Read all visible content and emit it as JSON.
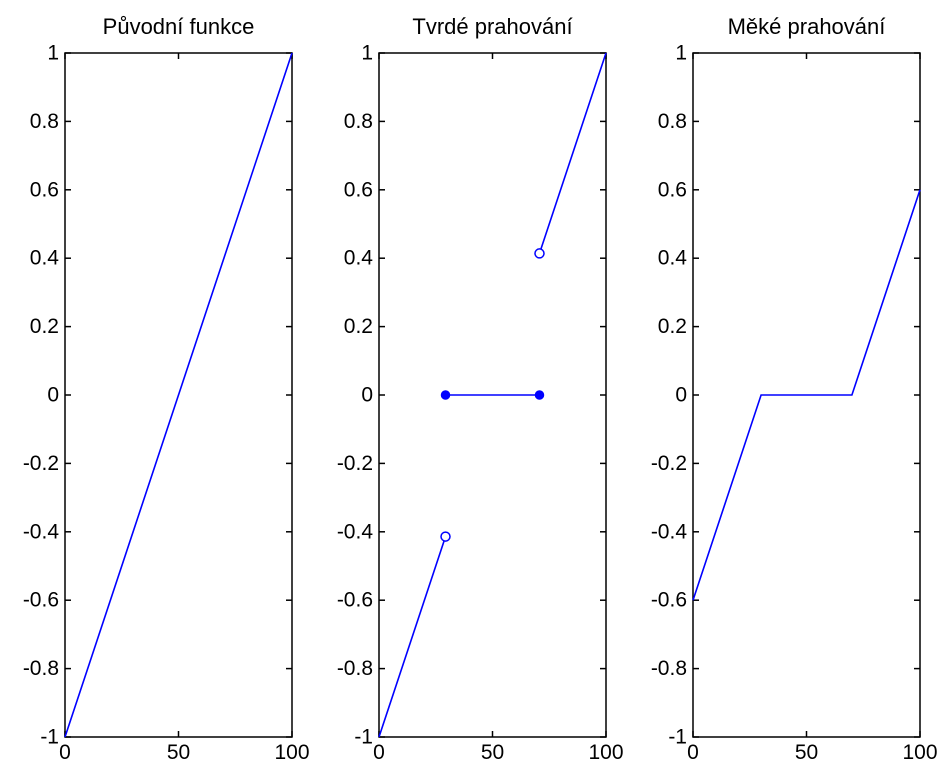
{
  "chart_data": [
    {
      "type": "line",
      "title": "Původní funkce",
      "xlabel": "",
      "ylabel": "",
      "xlim": [
        0,
        100
      ],
      "ylim": [
        -1,
        1
      ],
      "xticks": [
        "0",
        "50",
        "100"
      ],
      "yticks": [
        "-1",
        "-0.8",
        "-0.6",
        "-0.4",
        "-0.2",
        "0",
        "0.2",
        "0.4",
        "0.6",
        "0.8",
        "1"
      ],
      "grid": false,
      "color": "#0000ff",
      "series": [
        {
          "x": [
            0,
            100
          ],
          "y": [
            -1,
            1
          ]
        }
      ],
      "markers": []
    },
    {
      "type": "line",
      "title": "Tvrdé prahování",
      "xlabel": "",
      "ylabel": "",
      "xlim": [
        0,
        100
      ],
      "ylim": [
        -1,
        1
      ],
      "xticks": [
        "0",
        "50",
        "100"
      ],
      "yticks": [
        "-1",
        "-0.8",
        "-0.6",
        "-0.4",
        "-0.2",
        "0",
        "0.2",
        "0.4",
        "0.6",
        "0.8",
        "1"
      ],
      "grid": false,
      "color": "#0000ff",
      "series": [
        {
          "x": [
            0,
            29.3
          ],
          "y": [
            -1,
            -0.414
          ]
        },
        {
          "x": [
            29.3,
            70.7
          ],
          "y": [
            0,
            0
          ]
        },
        {
          "x": [
            70.7,
            100
          ],
          "y": [
            0.414,
            1
          ]
        }
      ],
      "markers": [
        {
          "x": 29.3,
          "y": -0.414,
          "filled": false
        },
        {
          "x": 29.3,
          "y": 0,
          "filled": true
        },
        {
          "x": 70.7,
          "y": 0,
          "filled": true
        },
        {
          "x": 70.7,
          "y": 0.414,
          "filled": false
        }
      ]
    },
    {
      "type": "line",
      "title": "Měké prahování",
      "xlabel": "",
      "ylabel": "",
      "xlim": [
        0,
        100
      ],
      "ylim": [
        -1,
        1
      ],
      "xticks": [
        "0",
        "50",
        "100"
      ],
      "yticks": [
        "-1",
        "-0.8",
        "-0.6",
        "-0.4",
        "-0.2",
        "0",
        "0.2",
        "0.4",
        "0.6",
        "0.8",
        "1"
      ],
      "grid": false,
      "color": "#0000ff",
      "series": [
        {
          "x": [
            0,
            30,
            70,
            100
          ],
          "y": [
            -0.6,
            0,
            0,
            0.6
          ]
        }
      ],
      "markers": []
    }
  ]
}
